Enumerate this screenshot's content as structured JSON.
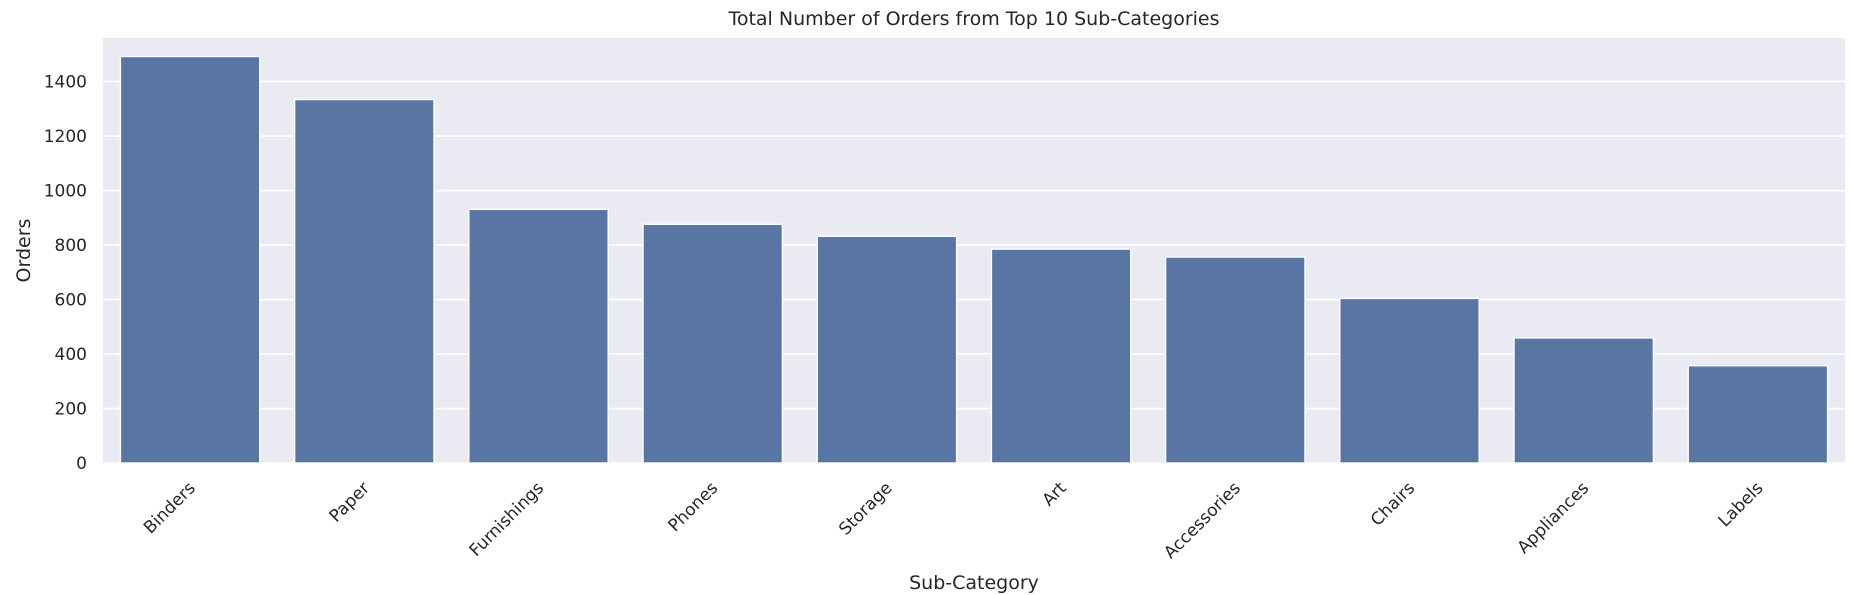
{
  "chart_data": {
    "type": "bar",
    "title": "Total Number of Orders from Top 10 Sub-Categories",
    "xlabel": "Sub-Category",
    "ylabel": "Orders",
    "categories": [
      "Binders",
      "Paper",
      "Furnishings",
      "Phones",
      "Storage",
      "Art",
      "Accessories",
      "Chairs",
      "Appliances",
      "Labels"
    ],
    "values": [
      1492,
      1334,
      931,
      876,
      832,
      785,
      756,
      604,
      459,
      357
    ],
    "ylim": [
      0,
      1560
    ],
    "yticks": [
      0,
      200,
      400,
      600,
      800,
      1000,
      1200,
      1400
    ],
    "grid": true,
    "colors": {
      "bar": "#5975a4",
      "background": "#eaeaf2",
      "grid": "#ffffff",
      "text": "#262626"
    }
  }
}
